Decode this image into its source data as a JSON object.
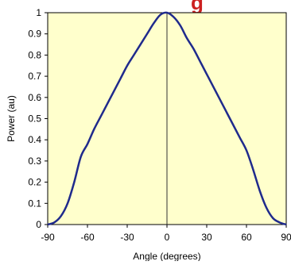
{
  "chart_data": {
    "type": "line",
    "title": "",
    "xlabel": "Angle (degrees)",
    "ylabel": "Power (au)",
    "xlim": [
      -90,
      90
    ],
    "ylim": [
      0,
      1
    ],
    "xticks": [
      -90,
      -60,
      -30,
      0,
      30,
      60,
      90
    ],
    "xtick_labels": [
      "-90",
      "-60",
      "-30",
      "0",
      "30",
      "60",
      "90"
    ],
    "yticks": [
      0,
      0.1,
      0.2,
      0.3,
      0.4,
      0.5,
      0.6,
      0.7,
      0.8,
      0.9,
      1
    ],
    "ytick_labels": [
      "0",
      "0.1",
      "0.2",
      "0.3",
      "0.4",
      "0.5",
      "0.6",
      "0.7",
      "0.8",
      "0.9",
      "1"
    ],
    "grid": false,
    "legend": "none",
    "series": [
      {
        "color": "#1f2a8c",
        "x": [
          -90,
          -85,
          -80,
          -75,
          -70,
          -65,
          -60,
          -55,
          -50,
          -45,
          -40,
          -35,
          -30,
          -25,
          -20,
          -15,
          -10,
          -5,
          0,
          5,
          10,
          15,
          20,
          25,
          30,
          35,
          40,
          45,
          50,
          55,
          60,
          65,
          70,
          75,
          80,
          85,
          90
        ],
        "y": [
          0,
          0.01,
          0.04,
          0.1,
          0.2,
          0.32,
          0.38,
          0.45,
          0.51,
          0.57,
          0.63,
          0.69,
          0.75,
          0.8,
          0.85,
          0.9,
          0.95,
          0.99,
          1,
          0.98,
          0.94,
          0.88,
          0.83,
          0.77,
          0.71,
          0.65,
          0.59,
          0.53,
          0.47,
          0.41,
          0.35,
          0.26,
          0.16,
          0.08,
          0.03,
          0.01,
          0
        ]
      }
    ],
    "vline_x": 0,
    "plot_background": "#ffffcc",
    "title_fragment": "g",
    "title_color": "#cc2020"
  }
}
